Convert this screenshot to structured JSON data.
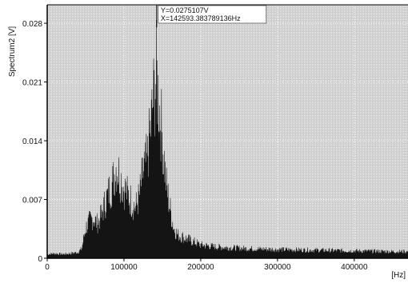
{
  "chart_data": {
    "type": "area",
    "ylabel": "Spectrum2 [V]",
    "xunit": "[Hz]",
    "xlim": [
      0,
      470000
    ],
    "ylim": [
      0,
      0.0302
    ],
    "xticks": [
      0,
      100000,
      200000,
      300000,
      400000
    ],
    "xtick_labels": [
      "0",
      "100000",
      "200000",
      "300000",
      "400000"
    ],
    "yticks": [
      0,
      0.007,
      0.014,
      0.021,
      0.028
    ],
    "ytick_labels": [
      "0",
      "0.007",
      "0.014",
      "0.021",
      "0.028"
    ],
    "grid": true,
    "series": [
      {
        "x": [
          0,
          10000,
          20000,
          30000,
          40000,
          45000,
          50000,
          55000,
          60000,
          65000,
          70000,
          75000,
          80000,
          85000,
          90000,
          95000,
          100000,
          105000,
          110000,
          115000,
          120000,
          125000,
          130000,
          135000,
          138000,
          141000,
          142593,
          144000,
          147000,
          150000,
          155000,
          160000,
          165000,
          170000,
          180000,
          190000,
          200000,
          220000,
          250000,
          300000,
          350000,
          400000,
          450000,
          470000
        ],
        "y": [
          0.0006,
          0.0007,
          0.0006,
          0.0007,
          0.0009,
          0.0014,
          0.0045,
          0.0055,
          0.006,
          0.0052,
          0.0062,
          0.0082,
          0.0098,
          0.0112,
          0.0138,
          0.0122,
          0.0105,
          0.0095,
          0.0085,
          0.0075,
          0.0092,
          0.0128,
          0.0145,
          0.0195,
          0.0235,
          0.026,
          0.0275,
          0.025,
          0.022,
          0.018,
          0.011,
          0.0075,
          0.0045,
          0.0035,
          0.003,
          0.0025,
          0.002,
          0.0017,
          0.0015,
          0.0013,
          0.0012,
          0.0011,
          0.001,
          0.001
        ]
      }
    ],
    "annotations": [
      {
        "label_y": "Y=0.0275107V",
        "label_x": "X=142593.383789136Hz",
        "x": 142593,
        "y": 0.0275107
      }
    ]
  },
  "colors": {
    "plot_bg": "#d3d3d3",
    "grid": "#ffffff",
    "fill": "#141414",
    "axis": "#000000"
  }
}
